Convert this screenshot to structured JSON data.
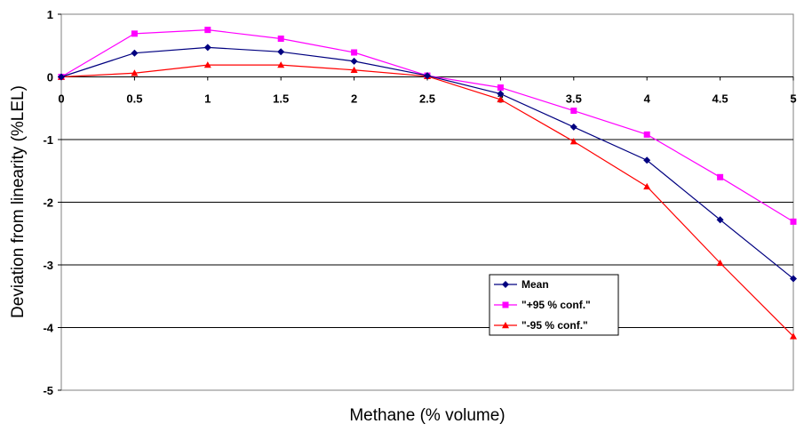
{
  "chart_data": {
    "type": "line",
    "title": "",
    "xlabel": "Methane (% volume)",
    "ylabel": "Deviation from linearity (%LEL)",
    "x": [
      0,
      0.5,
      1,
      1.5,
      2,
      2.5,
      3,
      3.5,
      4,
      4.5,
      5
    ],
    "x_tick_labels": [
      "0",
      "0.5",
      "1",
      "1.5",
      "2",
      "2.5",
      "3",
      "3.5",
      "4",
      "4.5",
      "5"
    ],
    "y_tick_labels": [
      "1",
      "0",
      "-1",
      "-2",
      "-3",
      "-4",
      "-5"
    ],
    "y_ticks": [
      1,
      0,
      -1,
      -2,
      -3,
      -4,
      -5
    ],
    "xlim": [
      0,
      5
    ],
    "ylim": [
      -5,
      1
    ],
    "grid": "horizontal",
    "legend_position": "lower-right",
    "series": [
      {
        "name": "Mean",
        "color": "#000080",
        "marker": "diamond",
        "values": [
          0,
          0.38,
          0.47,
          0.4,
          0.25,
          0.02,
          -0.27,
          -0.8,
          -1.33,
          -2.28,
          -3.22
        ]
      },
      {
        "name": "\"+95 % conf.\"",
        "color": "#ff00ff",
        "marker": "square",
        "values": [
          0,
          0.69,
          0.75,
          0.61,
          0.39,
          0.02,
          -0.17,
          -0.54,
          -0.92,
          -1.6,
          -2.31
        ]
      },
      {
        "name": "\"-95 % conf.\"",
        "color": "#ff0000",
        "marker": "triangle",
        "values": [
          0,
          0.06,
          0.19,
          0.19,
          0.11,
          0.01,
          -0.36,
          -1.03,
          -1.75,
          -2.97,
          -4.14
        ]
      }
    ]
  }
}
